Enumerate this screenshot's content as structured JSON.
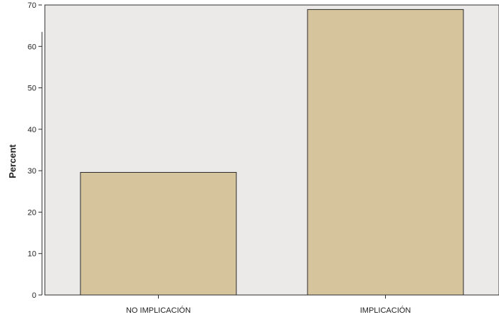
{
  "chart_data": {
    "type": "bar",
    "title": "",
    "xlabel": "",
    "ylabel": "Percent",
    "categories": [
      "NO IMPLICACIÓN",
      "IMPLICACIÓN"
    ],
    "values": [
      29.6,
      68.9
    ],
    "ylim": [
      0,
      70
    ],
    "yticks": [
      0,
      10,
      20,
      30,
      40,
      50,
      60,
      70
    ],
    "grid": false,
    "legend": "none",
    "colors": {
      "plot_background": "#ECEAE8",
      "bar_fill": "#D6C49D",
      "bar_stroke": "#2B2B2B",
      "axis": "#2B2B2B"
    }
  }
}
